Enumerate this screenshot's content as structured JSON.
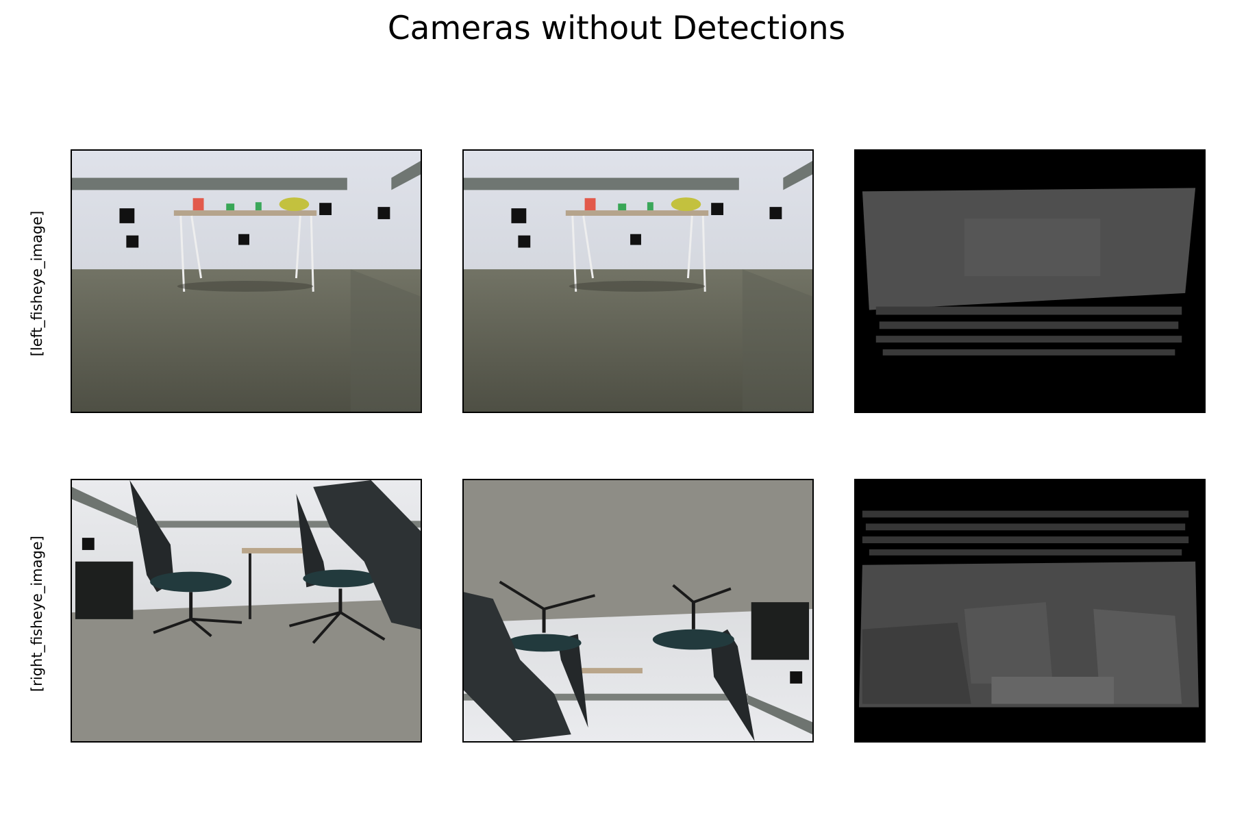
{
  "figure": {
    "title": "Cameras without Detections",
    "rows": [
      {
        "label": "[left_fisheye_image]",
        "panels": [
          {
            "kind": "rgb",
            "scene": "table-room"
          },
          {
            "kind": "rgb",
            "scene": "table-room"
          },
          {
            "kind": "depth",
            "scene": "table-room"
          }
        ]
      },
      {
        "label": "[right_fisheye_image]",
        "panels": [
          {
            "kind": "rgb",
            "scene": "chairs-room"
          },
          {
            "kind": "rgb",
            "scene": "chairs-room-flipped"
          },
          {
            "kind": "depth",
            "scene": "chairs-room"
          }
        ]
      }
    ]
  }
}
